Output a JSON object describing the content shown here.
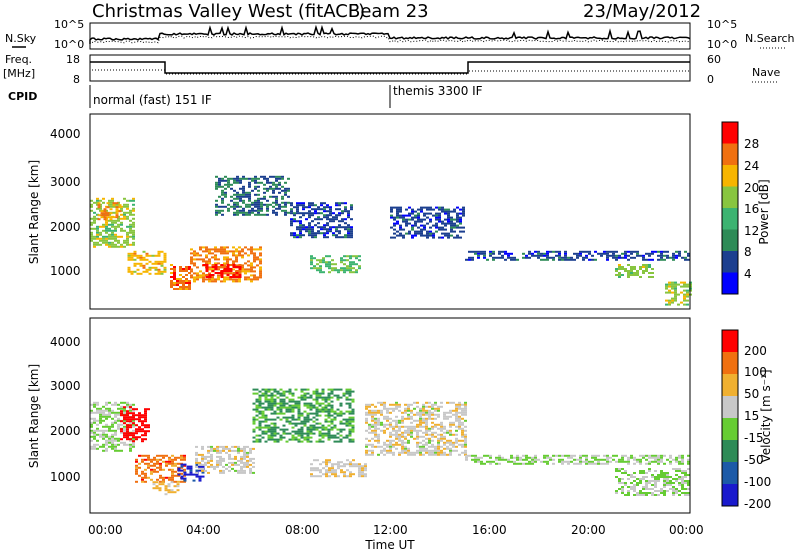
{
  "header": {
    "title": "Christmas Valley West (fitACF)",
    "beam": "Beam 23",
    "date": "23/May/2012"
  },
  "nsky_panel": {
    "left_label": "N.Sky",
    "left_ticks": [
      "10^5",
      "10^0"
    ],
    "right_label": "N.Search",
    "right_ticks": [
      "10^5",
      "10^0"
    ]
  },
  "freq_panel": {
    "left_label_1": "Freq.",
    "left_label_2": "[MHz]",
    "left_ticks": [
      "18",
      "8"
    ],
    "right_label": "Nave",
    "right_ticks": [
      "60",
      "0"
    ]
  },
  "cpid_panel": {
    "label": "CPID",
    "mode_1": "normal (fast) 151 IF",
    "mode_2": "themis 3300 IF"
  },
  "power_panel": {
    "ylabel": "Slant Range [km]",
    "yticks": [
      "4000",
      "3000",
      "2000",
      "1000"
    ],
    "colorbar_label": "Power [dB]",
    "colorbar_ticks": [
      "28",
      "24",
      "20",
      "16",
      "12",
      "8",
      "4"
    ],
    "colors": [
      "#0000ff",
      "#1c3f8f",
      "#2e8b57",
      "#3cb371",
      "#88c540",
      "#f7b500",
      "#f07010",
      "#ff0000"
    ]
  },
  "velocity_panel": {
    "ylabel": "Slant Range [km]",
    "yticks": [
      "4000",
      "3000",
      "2000",
      "1000"
    ],
    "colorbar_label": "Velocity [m s⁻¹]",
    "colorbar_ticks": [
      "200",
      "100",
      "50",
      "15",
      "-15",
      "-50",
      "-100",
      "-200"
    ],
    "colors": [
      "#1a1acd",
      "#1c5aa8",
      "#2e8b57",
      "#66cc33",
      "#c8c8c8",
      "#f0b030",
      "#f07010",
      "#ff0000"
    ]
  },
  "xaxis": {
    "ticks": [
      "00:00",
      "04:00",
      "08:00",
      "12:00",
      "16:00",
      "20:00",
      "00:00"
    ],
    "label": "Time UT"
  },
  "chart_data": {
    "type": "heatmap",
    "title": "Christmas Valley West (fitACF)",
    "subtitle": "Beam 23",
    "date": "23/May/2012",
    "x_range_hours": [
      0,
      24
    ],
    "y_range_km": [
      180,
      4600
    ],
    "xlabel": "Time UT",
    "panels": [
      {
        "name": "Power",
        "units": "dB",
        "clim": [
          0,
          32
        ],
        "patches": [
          {
            "t0": 0.0,
            "t1": 1.8,
            "r0": 1600,
            "r1": 2700,
            "v": 18
          },
          {
            "t0": 0.3,
            "t1": 1.2,
            "r0": 2200,
            "r1": 2600,
            "v": 24
          },
          {
            "t0": 1.5,
            "t1": 3.0,
            "r0": 1000,
            "r1": 1500,
            "v": 22
          },
          {
            "t0": 3.2,
            "t1": 4.0,
            "r0": 650,
            "r1": 1200,
            "v": 26
          },
          {
            "t0": 4.0,
            "t1": 6.8,
            "r0": 800,
            "r1": 1600,
            "v": 25
          },
          {
            "t0": 4.5,
            "t1": 6.0,
            "r0": 900,
            "r1": 1200,
            "v": 30
          },
          {
            "t0": 5.0,
            "t1": 8.0,
            "r0": 2300,
            "r1": 3200,
            "v": 8
          },
          {
            "t0": 8.0,
            "t1": 10.5,
            "r0": 1800,
            "r1": 2600,
            "v": 6
          },
          {
            "t0": 8.8,
            "t1": 10.8,
            "r0": 1000,
            "r1": 1400,
            "v": 15
          },
          {
            "t0": 12.0,
            "t1": 15.0,
            "r0": 1800,
            "r1": 2500,
            "v": 6
          },
          {
            "t0": 15.0,
            "t1": 24.0,
            "r0": 1300,
            "r1": 1500,
            "v": 6
          },
          {
            "t0": 21.0,
            "t1": 22.5,
            "r0": 900,
            "r1": 1200,
            "v": 18
          },
          {
            "t0": 23.0,
            "t1": 24.0,
            "r0": 300,
            "r1": 800,
            "v": 18
          }
        ]
      },
      {
        "name": "Velocity",
        "units": "m s-1",
        "clim": [
          -200,
          200
        ],
        "patches": [
          {
            "t0": 0.0,
            "t1": 1.8,
            "r0": 1600,
            "r1": 2700,
            "v": 0
          },
          {
            "t0": 1.2,
            "t1": 2.3,
            "r0": 1800,
            "r1": 2600,
            "v": 200
          },
          {
            "t0": 1.8,
            "t1": 3.8,
            "r0": 900,
            "r1": 1500,
            "v": 120
          },
          {
            "t0": 2.5,
            "t1": 3.5,
            "r0": 600,
            "r1": 900,
            "v": 60
          },
          {
            "t0": 3.5,
            "t1": 4.5,
            "r0": 900,
            "r1": 1300,
            "v": -180
          },
          {
            "t0": 4.2,
            "t1": 6.5,
            "r0": 1100,
            "r1": 1700,
            "v": 30
          },
          {
            "t0": 6.5,
            "t1": 10.5,
            "r0": 1800,
            "r1": 3000,
            "v": -60
          },
          {
            "t0": 8.8,
            "t1": 11.0,
            "r0": 1000,
            "r1": 1400,
            "v": 40
          },
          {
            "t0": 11.0,
            "t1": 15.0,
            "r0": 1500,
            "r1": 2700,
            "v": 30
          },
          {
            "t0": 15.0,
            "t1": 24.0,
            "r0": 1300,
            "r1": 1500,
            "v": 0
          },
          {
            "t0": 21.0,
            "t1": 24.0,
            "r0": 600,
            "r1": 1200,
            "v": 0
          }
        ]
      }
    ]
  }
}
